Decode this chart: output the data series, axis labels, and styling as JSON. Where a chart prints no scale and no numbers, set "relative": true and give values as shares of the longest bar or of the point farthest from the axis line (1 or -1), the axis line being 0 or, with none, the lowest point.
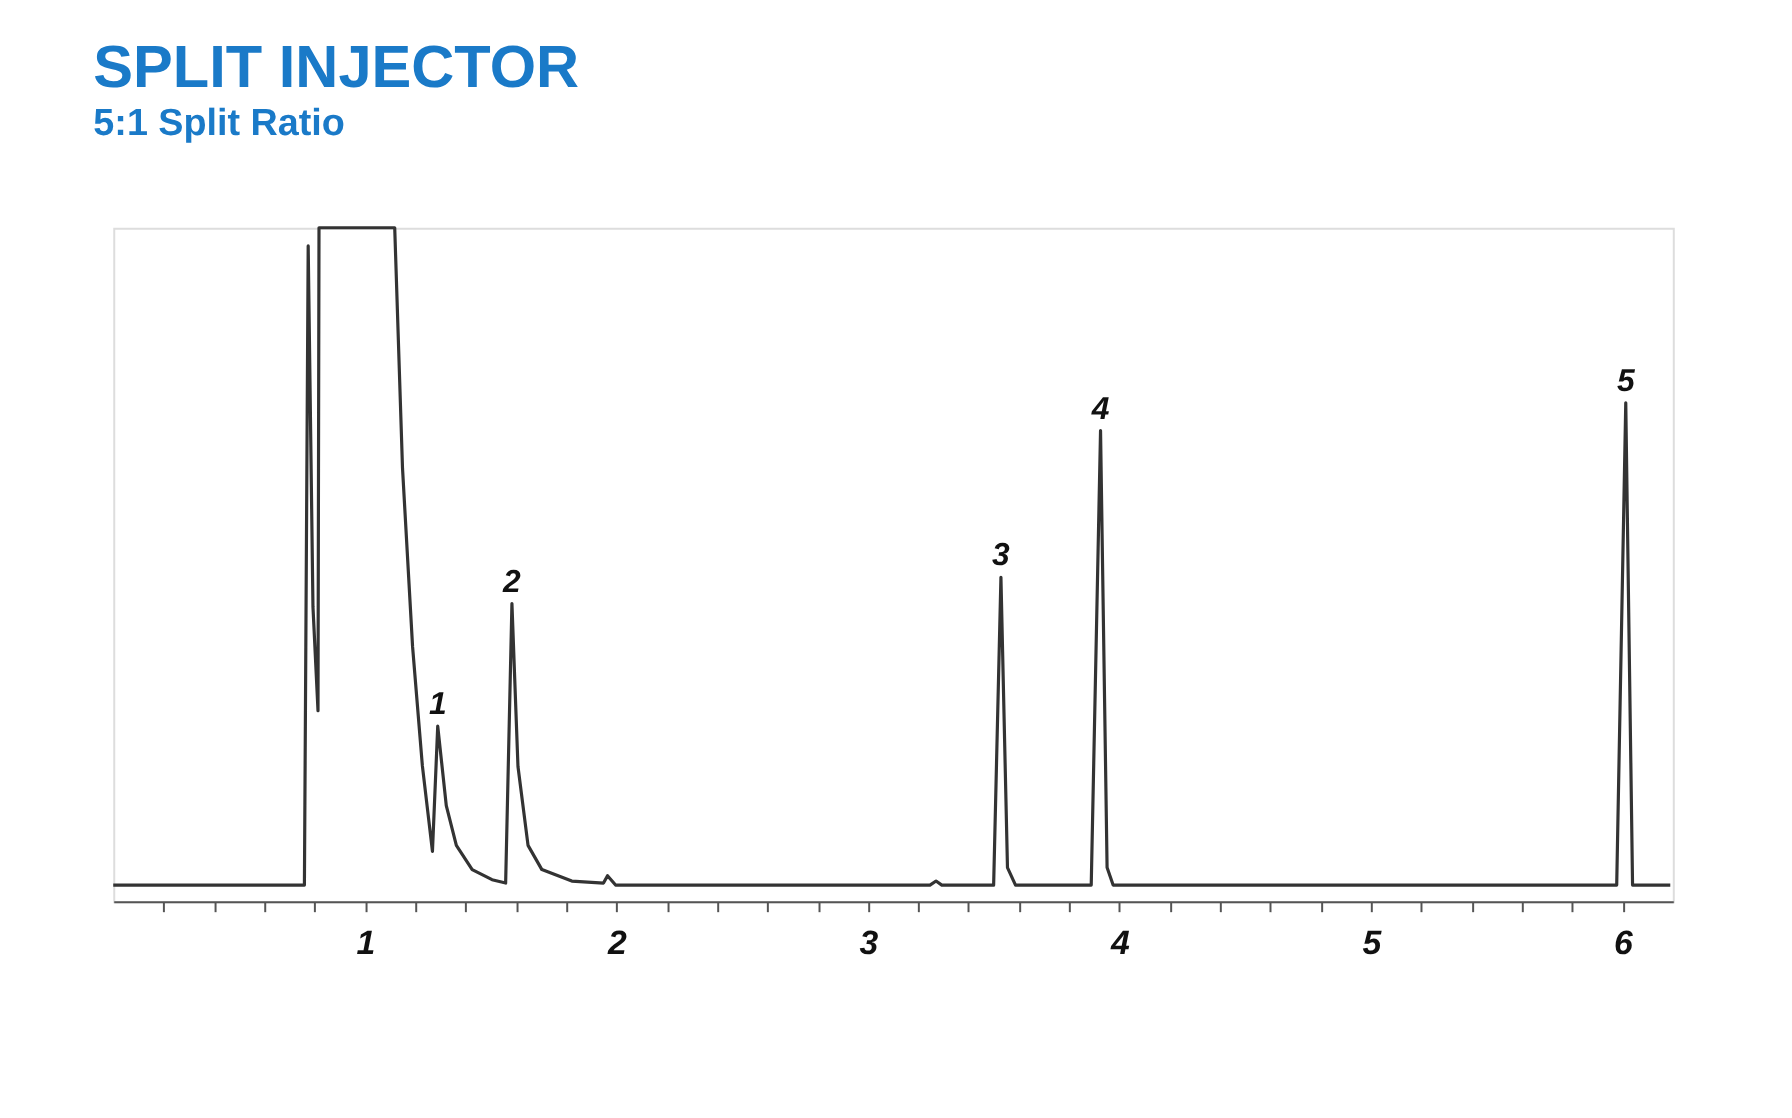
{
  "chart_data": {
    "type": "line",
    "title": "SPLIT INJECTOR",
    "subtitle": "5:1 Split Ratio",
    "relative": true,
    "legend": false,
    "grid": false,
    "marker": "none",
    "line_style": "solid",
    "xlim": [
      0,
      6.2
    ],
    "xticks": [
      {
        "value": 0.2,
        "label": null
      },
      {
        "value": 0.4,
        "label": null
      },
      {
        "value": 0.6,
        "label": null
      },
      {
        "value": 0.8,
        "label": null
      },
      1,
      {
        "value": 1.2,
        "label": null
      },
      {
        "value": 1.4,
        "label": null
      },
      {
        "value": 1.6,
        "label": null
      },
      {
        "value": 1.8,
        "label": null
      },
      2,
      {
        "value": 2.2,
        "label": null
      },
      {
        "value": 2.4,
        "label": null
      },
      {
        "value": 2.6,
        "label": null
      },
      {
        "value": 2.8,
        "label": null
      },
      3,
      {
        "value": 3.2,
        "label": null
      },
      {
        "value": 3.4,
        "label": null
      },
      {
        "value": 3.6,
        "label": null
      },
      {
        "value": 3.8,
        "label": null
      },
      4,
      {
        "value": 4.2,
        "label": null
      },
      {
        "value": 4.4,
        "label": null
      },
      {
        "value": 4.6,
        "label": null
      },
      {
        "value": 4.8,
        "label": null
      },
      5,
      {
        "value": 5.2,
        "label": null
      },
      {
        "value": 5.4,
        "label": null
      },
      {
        "value": 5.6,
        "label": null
      },
      {
        "value": 5.8,
        "label": null
      },
      6
    ],
    "series": [
      {
        "color": "#333333",
        "x": [
          0.0,
          0.76,
          0.775,
          0.794,
          0.814,
          0.818,
          1.119,
          1.15,
          1.19,
          1.229,
          1.269,
          1.29,
          1.324,
          1.364,
          1.427,
          1.506,
          1.56,
          1.585,
          1.609,
          1.649,
          1.704,
          1.823,
          1.949,
          1.965,
          1.997,
          3.247,
          3.271,
          3.294,
          3.5,
          3.529,
          3.555,
          3.587,
          3.888,
          3.925,
          3.951,
          3.975,
          5.977,
          6.013,
          6.04,
          6.19
        ],
        "values": [
          0.024,
          0.024,
          0.973,
          0.437,
          0.283,
          1.0,
          1.0,
          0.643,
          0.378,
          0.201,
          0.074,
          0.26,
          0.142,
          0.083,
          0.047,
          0.032,
          0.027,
          0.442,
          0.2,
          0.083,
          0.047,
          0.03,
          0.027,
          0.038,
          0.024,
          0.024,
          0.03,
          0.024,
          0.024,
          0.481,
          0.05,
          0.024,
          0.024,
          0.699,
          0.05,
          0.024,
          0.024,
          0.74,
          0.024,
          0.024
        ]
      }
    ],
    "annotations": [
      {
        "text": "1",
        "x": 1.29,
        "y": 0.26
      },
      {
        "text": "2",
        "x": 1.585,
        "y": 0.442
      },
      {
        "text": "3",
        "x": 3.529,
        "y": 0.481
      },
      {
        "text": "4",
        "x": 3.925,
        "y": 0.699
      },
      {
        "text": "5",
        "x": 6.013,
        "y": 0.74
      }
    ]
  }
}
